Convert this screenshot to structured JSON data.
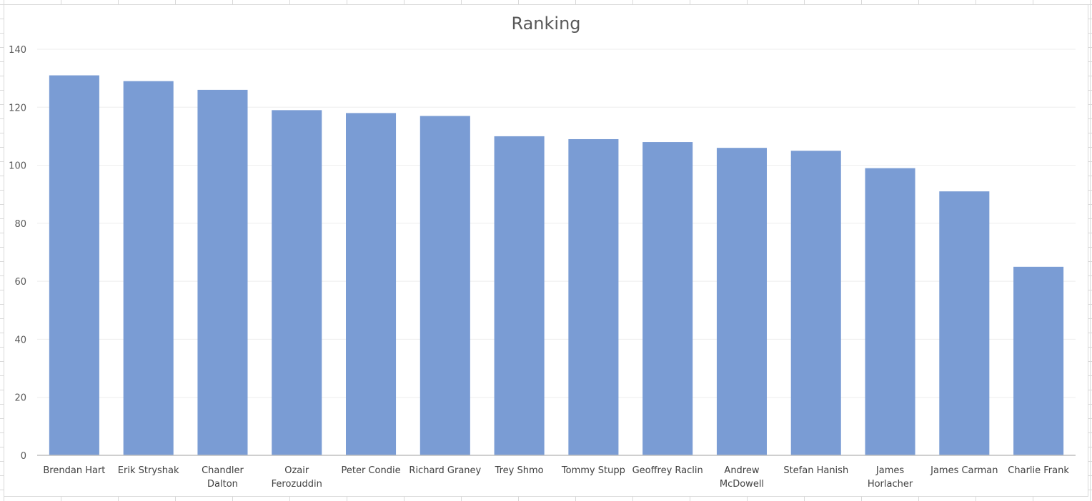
{
  "chart_data": {
    "type": "bar",
    "title": "Ranking",
    "xlabel": "",
    "ylabel": "",
    "ylim": [
      0,
      140
    ],
    "yticks": [
      0,
      20,
      40,
      60,
      80,
      100,
      120,
      140
    ],
    "grid": true,
    "legend": "none",
    "categories": [
      [
        "Brendan Hart"
      ],
      [
        "Erik Stryshak"
      ],
      [
        "Chandler",
        "Dalton"
      ],
      [
        "Ozair",
        "Ferozuddin"
      ],
      [
        "Peter Condie"
      ],
      [
        "Richard Graney"
      ],
      [
        "Trey Shmo"
      ],
      [
        "Tommy Stupp"
      ],
      [
        "Geoffrey Raclin"
      ],
      [
        "Andrew",
        "McDowell"
      ],
      [
        "Stefan Hanish"
      ],
      [
        "James",
        "Horlacher"
      ],
      [
        "James Carman"
      ],
      [
        "Charlie Frank"
      ]
    ],
    "values": [
      131,
      129,
      126,
      119,
      118,
      117,
      110,
      109,
      108,
      106,
      105,
      99,
      91,
      65
    ],
    "bar_color": "#7a9cd4",
    "gridline_color": "#eeeeee",
    "axis_color": "#bfbfbf"
  }
}
